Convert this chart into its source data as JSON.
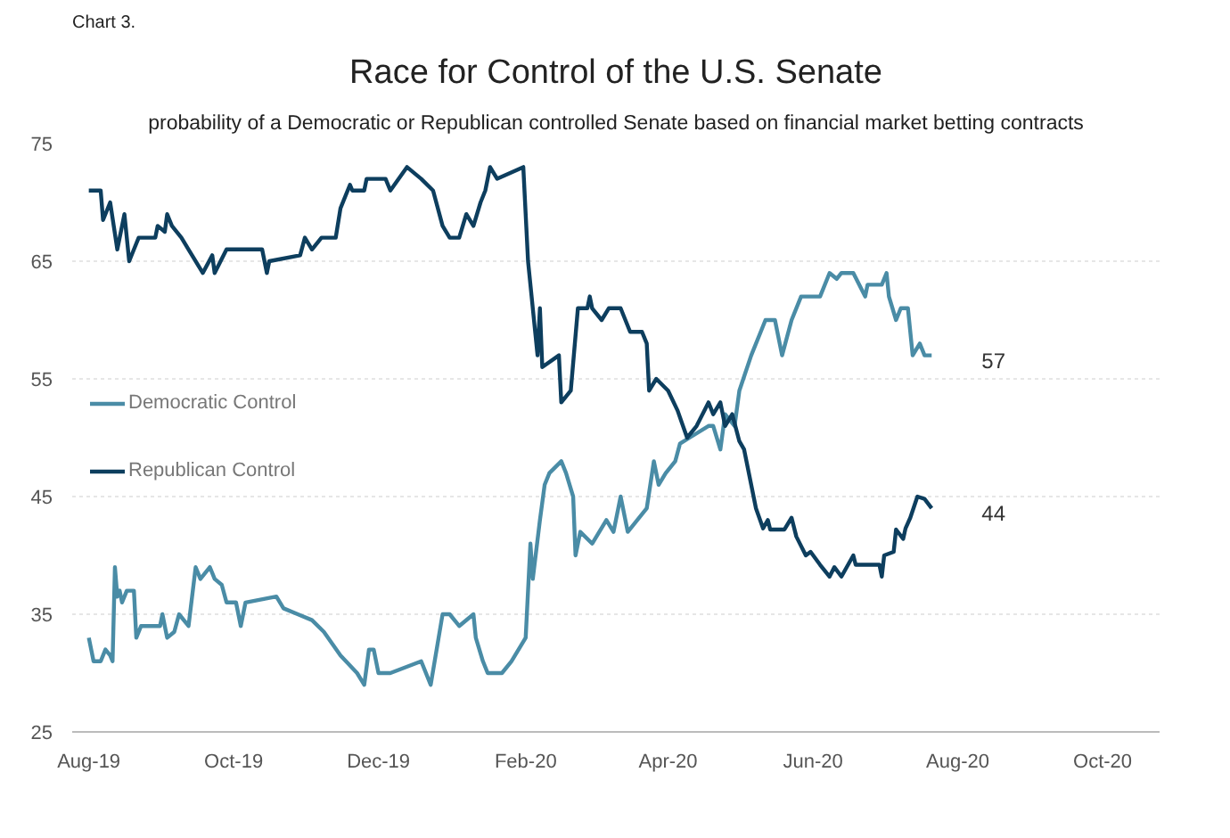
{
  "chart_data": {
    "type": "line",
    "title": "Race for Control of the U.S. Senate",
    "subtitle": "probability of a Democratic or Republican controlled Senate based on financial market betting contracts",
    "annotations": [
      "Chart 3.",
      {
        "text": "57",
        "x": "2020-07-21",
        "y": 57
      },
      {
        "text": "44",
        "x": "2020-07-21",
        "y": 44
      }
    ],
    "series": [
      {
        "name": "Democratic Control",
        "color": "#4a8ca6",
        "x": [
          "2019-08-01",
          "2019-08-03",
          "2019-08-06",
          "2019-08-08",
          "2019-08-10",
          "2019-08-11",
          "2019-08-12",
          "2019-08-13",
          "2019-08-14",
          "2019-08-15",
          "2019-08-17",
          "2019-08-20",
          "2019-08-21",
          "2019-08-23",
          "2019-08-31",
          "2019-09-01",
          "2019-09-03",
          "2019-09-06",
          "2019-09-08",
          "2019-09-12",
          "2019-09-15",
          "2019-09-17",
          "2019-09-21",
          "2019-09-23",
          "2019-09-26",
          "2019-09-28",
          "2019-10-02",
          "2019-10-04",
          "2019-10-06",
          "2019-10-19",
          "2019-10-22",
          "2019-10-28",
          "2019-11-03",
          "2019-11-08",
          "2019-11-15",
          "2019-11-22",
          "2019-11-25",
          "2019-11-27",
          "2019-11-29",
          "2019-12-01",
          "2019-12-06",
          "2019-12-19",
          "2019-12-23",
          "2019-12-28",
          "2019-12-31",
          "2020-01-04",
          "2020-01-10",
          "2020-01-11",
          "2020-01-14",
          "2020-01-16",
          "2020-01-22",
          "2020-01-26",
          "2020-02-01",
          "2020-02-03",
          "2020-02-04",
          "2020-02-07",
          "2020-02-09",
          "2020-02-11",
          "2020-02-16",
          "2020-02-18",
          "2020-02-21",
          "2020-02-22",
          "2020-02-24",
          "2020-02-29",
          "2020-03-06",
          "2020-03-09",
          "2020-03-12",
          "2020-03-15",
          "2020-03-19",
          "2020-03-23",
          "2020-03-26",
          "2020-03-28",
          "2020-03-31",
          "2020-04-04",
          "2020-04-06",
          "2020-04-10",
          "2020-04-18",
          "2020-04-20",
          "2020-04-23",
          "2020-04-25",
          "2020-04-29",
          "2020-05-01",
          "2020-05-06",
          "2020-05-10",
          "2020-05-12",
          "2020-05-16",
          "2020-05-19",
          "2020-05-23",
          "2020-05-27",
          "2020-06-04",
          "2020-06-08",
          "2020-06-11",
          "2020-06-13",
          "2020-06-18",
          "2020-06-23",
          "2020-06-24",
          "2020-06-30",
          "2020-07-02",
          "2020-07-03",
          "2020-07-06",
          "2020-07-08",
          "2020-07-11",
          "2020-07-13",
          "2020-07-16",
          "2020-07-18",
          "2020-07-21"
        ],
        "values": [
          33,
          31,
          31,
          32,
          31.5,
          31,
          39,
          36.5,
          37,
          36,
          37,
          37,
          33,
          34,
          34,
          35,
          33,
          33.5,
          35,
          34,
          39,
          38,
          39,
          38,
          37.5,
          36,
          36,
          34,
          36,
          36.5,
          35.5,
          35,
          34.5,
          33.5,
          31.5,
          30,
          29,
          32,
          32,
          30,
          30,
          31,
          29,
          35,
          35,
          34,
          35,
          33,
          31,
          30,
          30,
          31,
          33,
          41,
          38,
          43,
          46,
          47,
          48,
          47,
          45,
          40,
          42,
          41,
          43,
          42,
          45,
          42,
          43,
          44,
          48,
          46,
          47,
          48,
          49.5,
          50,
          51,
          51,
          49,
          52,
          51,
          54,
          57,
          59,
          60,
          60,
          57,
          60,
          62,
          62,
          64,
          63.5,
          64,
          64,
          62,
          63,
          63,
          64,
          62,
          60,
          61,
          61,
          57,
          58,
          57,
          57
        ]
      },
      {
        "name": "Republican Control",
        "color": "#0d3e5e",
        "x": [
          "2019-08-01",
          "2019-08-06",
          "2019-08-07",
          "2019-08-10",
          "2019-08-13",
          "2019-08-16",
          "2019-08-18",
          "2019-08-20",
          "2019-08-22",
          "2019-08-29",
          "2019-08-30",
          "2019-09-02",
          "2019-09-03",
          "2019-09-05",
          "2019-09-09",
          "2019-09-12",
          "2019-09-18",
          "2019-09-22",
          "2019-09-23",
          "2019-09-28",
          "2019-10-13",
          "2019-10-15",
          "2019-10-16",
          "2019-10-29",
          "2019-10-31",
          "2019-11-03",
          "2019-11-07",
          "2019-11-13",
          "2019-11-15",
          "2019-11-19",
          "2019-11-20",
          "2019-11-25",
          "2019-11-26",
          "2019-12-04",
          "2019-12-06",
          "2019-12-13",
          "2019-12-19",
          "2019-12-24",
          "2019-12-28",
          "2019-12-31",
          "2020-01-04",
          "2020-01-07",
          "2020-01-10",
          "2020-01-13",
          "2020-01-15",
          "2020-01-17",
          "2020-01-20",
          "2020-01-31",
          "2020-02-02",
          "2020-02-06",
          "2020-02-07",
          "2020-02-08",
          "2020-02-15",
          "2020-02-16",
          "2020-02-20",
          "2020-02-23",
          "2020-02-27",
          "2020-02-28",
          "2020-02-29",
          "2020-03-04",
          "2020-03-07",
          "2020-03-12",
          "2020-03-14",
          "2020-03-16",
          "2020-03-21",
          "2020-03-23",
          "2020-03-24",
          "2020-03-27",
          "2020-04-01",
          "2020-04-05",
          "2020-04-09",
          "2020-04-13",
          "2020-04-18",
          "2020-04-20",
          "2020-04-23",
          "2020-04-25",
          "2020-04-28",
          "2020-05-01",
          "2020-05-03",
          "2020-05-08",
          "2020-05-11",
          "2020-05-13",
          "2020-05-14",
          "2020-05-20",
          "2020-05-23",
          "2020-05-25",
          "2020-05-29",
          "2020-05-31",
          "2020-06-04",
          "2020-06-08",
          "2020-06-10",
          "2020-06-13",
          "2020-06-18",
          "2020-06-19",
          "2020-06-29",
          "2020-06-30",
          "2020-07-01",
          "2020-07-05",
          "2020-07-06",
          "2020-07-09",
          "2020-07-10",
          "2020-07-12",
          "2020-07-15",
          "2020-07-18",
          "2020-07-21"
        ],
        "values": [
          71,
          71,
          68.5,
          70,
          66,
          69,
          65,
          66,
          67,
          67,
          68,
          67.5,
          69,
          68,
          67,
          66,
          64,
          65.5,
          64,
          66,
          66,
          64,
          65,
          65.5,
          67,
          66,
          67,
          67,
          69.5,
          71.5,
          71,
          71,
          72,
          72,
          71,
          73,
          72,
          71,
          68,
          67,
          67,
          69,
          68,
          70,
          71,
          73,
          72,
          73,
          65,
          57,
          61,
          56,
          57,
          53,
          54,
          61,
          61,
          62,
          61,
          60,
          61,
          61,
          60,
          59,
          59,
          58,
          54,
          55,
          54,
          52.3,
          50,
          51,
          53,
          52,
          53,
          51,
          52,
          49.7,
          49,
          44,
          42.3,
          43,
          42.2,
          42.2,
          43.2,
          41.6,
          40,
          40.3,
          39.2,
          38.2,
          39,
          38.2,
          40,
          39.2,
          39.2,
          38.2,
          40,
          40.3,
          42.2,
          41.4,
          42.3,
          43.2,
          45,
          44.8,
          44
        ]
      }
    ],
    "xlim": [
      "2019-07-25",
      "2020-10-25"
    ],
    "xticks": [
      {
        "value": "2019-08-01",
        "label": "Aug-19"
      },
      {
        "value": "2019-10-01",
        "label": "Oct-19"
      },
      {
        "value": "2019-12-01",
        "label": "Dec-19"
      },
      {
        "value": "2020-02-01",
        "label": "Feb-20"
      },
      {
        "value": "2020-04-01",
        "label": "Apr-20"
      },
      {
        "value": "2020-06-01",
        "label": "Jun-20"
      },
      {
        "value": "2020-08-01",
        "label": "Aug-20"
      },
      {
        "value": "2020-10-01",
        "label": "Oct-20"
      }
    ],
    "ylim": [
      25,
      75
    ],
    "yticks": [
      25,
      35,
      45,
      55,
      65,
      75
    ],
    "grid": "y",
    "legend": "left",
    "marker": "none",
    "line_style": "solid"
  }
}
